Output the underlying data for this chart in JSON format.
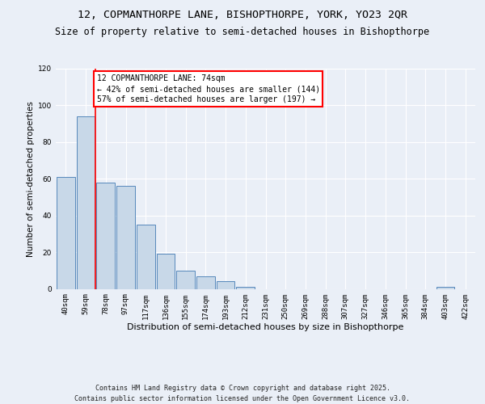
{
  "title_line1": "12, COPMANTHORPE LANE, BISHOPTHORPE, YORK, YO23 2QR",
  "title_line2": "Size of property relative to semi-detached houses in Bishopthorpe",
  "xlabel": "Distribution of semi-detached houses by size in Bishopthorpe",
  "ylabel": "Number of semi-detached properties",
  "footer": "Contains HM Land Registry data © Crown copyright and database right 2025.\nContains public sector information licensed under the Open Government Licence v3.0.",
  "bin_labels": [
    "40sqm",
    "59sqm",
    "78sqm",
    "97sqm",
    "117sqm",
    "136sqm",
    "155sqm",
    "174sqm",
    "193sqm",
    "212sqm",
    "231sqm",
    "250sqm",
    "269sqm",
    "288sqm",
    "307sqm",
    "327sqm",
    "346sqm",
    "365sqm",
    "384sqm",
    "403sqm",
    "422sqm"
  ],
  "bar_values": [
    61,
    94,
    58,
    56,
    35,
    19,
    10,
    7,
    4,
    1,
    0,
    0,
    0,
    0,
    0,
    0,
    0,
    0,
    0,
    1,
    0
  ],
  "bar_color": "#c8d8e8",
  "bar_edge_color": "#5588bb",
  "red_line_x": 1.5,
  "annotation_text": "12 COPMANTHORPE LANE: 74sqm\n← 42% of semi-detached houses are smaller (144)\n57% of semi-detached houses are larger (197) →",
  "annotation_box_color": "white",
  "annotation_box_edge_color": "red",
  "ylim": [
    0,
    120
  ],
  "yticks": [
    0,
    20,
    40,
    60,
    80,
    100,
    120
  ],
  "background_color": "#eaeff7",
  "plot_background_color": "#eaeff7",
  "grid_color": "white",
  "title_fontsize": 9.5,
  "subtitle_fontsize": 8.5,
  "ylabel_fontsize": 7.5,
  "xlabel_fontsize": 8,
  "tick_fontsize": 6.5,
  "annot_fontsize": 7,
  "footer_fontsize": 6
}
